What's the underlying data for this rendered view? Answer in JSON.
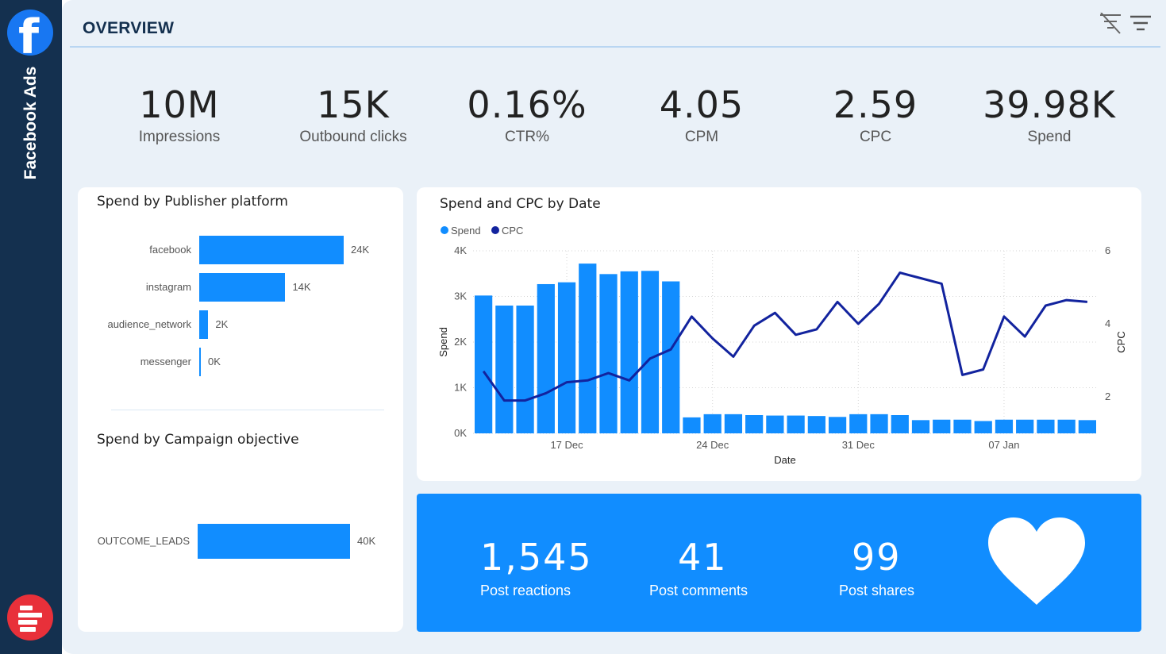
{
  "sidebar": {
    "app_title": "Facebook Ads",
    "fb_logo_icon": "facebook-icon",
    "brand_logo_icon": "brand-logo-icon"
  },
  "header": {
    "title": "OVERVIEW",
    "clear_filter_icon": "clear-filter-icon",
    "filter_icon": "filter-icon"
  },
  "kpis": [
    {
      "value": "10M",
      "label": "Impressions"
    },
    {
      "value": "15K",
      "label": "Outbound clicks"
    },
    {
      "value": "0.16%",
      "label": "CTR%"
    },
    {
      "value": "4.05",
      "label": "CPM"
    },
    {
      "value": "2.59",
      "label": "CPC"
    },
    {
      "value": "39.98K",
      "label": "Spend"
    }
  ],
  "publisher": {
    "title": "Spend by Publisher platform",
    "rows": [
      {
        "label": "facebook",
        "value": 24,
        "display": "24K"
      },
      {
        "label": "instagram",
        "value": 14.3,
        "display": "14K"
      },
      {
        "label": "audience_network",
        "value": 1.5,
        "display": "2K"
      },
      {
        "label": "messenger",
        "value": 0.2,
        "display": "0K"
      }
    ]
  },
  "objective": {
    "title": "Spend by Campaign objective",
    "rows": [
      {
        "label": "OUTCOME_LEADS",
        "value": 40,
        "display": "40K"
      }
    ]
  },
  "chart_data": {
    "type": "bar+line",
    "title": "Spend and CPC by Date",
    "xlabel": "Date",
    "ylabel": "Spend",
    "y2label": "CPC",
    "legend": [
      {
        "name": "Spend",
        "color": "#118dff"
      },
      {
        "name": "CPC",
        "color": "#12239e"
      }
    ],
    "ylim": [
      0,
      4000
    ],
    "y2lim": [
      1,
      6
    ],
    "yticks": [
      "0K",
      "1K",
      "2K",
      "3K",
      "4K"
    ],
    "y2ticks": [
      "2",
      "4",
      "6"
    ],
    "xticks": [
      {
        "index": 4,
        "label": "17 Dec"
      },
      {
        "index": 11,
        "label": "24 Dec"
      },
      {
        "index": 18,
        "label": "31 Dec"
      },
      {
        "index": 25,
        "label": "07 Jan"
      }
    ],
    "series": [
      {
        "name": "Spend",
        "type": "bar",
        "values": [
          3020,
          2800,
          2800,
          3270,
          3310,
          3720,
          3490,
          3550,
          3560,
          3330,
          350,
          420,
          420,
          400,
          390,
          390,
          380,
          360,
          420,
          420,
          400,
          290,
          300,
          300,
          270,
          300,
          300,
          300,
          300,
          290
        ]
      },
      {
        "name": "CPC",
        "type": "line",
        "values": [
          2.7,
          1.9,
          1.9,
          2.1,
          2.4,
          2.45,
          2.65,
          2.45,
          3.05,
          3.3,
          4.2,
          3.6,
          3.1,
          3.95,
          4.3,
          3.7,
          3.85,
          4.6,
          4.0,
          4.55,
          5.4,
          5.25,
          5.1,
          2.6,
          2.75,
          4.2,
          3.65,
          4.5,
          4.65,
          4.6
        ]
      }
    ]
  },
  "engagement": [
    {
      "value": "1,545",
      "label": "Post reactions"
    },
    {
      "value": "41",
      "label": "Post comments"
    },
    {
      "value": "99",
      "label": "Post shares"
    }
  ],
  "engagement_icon": "heart-icon"
}
